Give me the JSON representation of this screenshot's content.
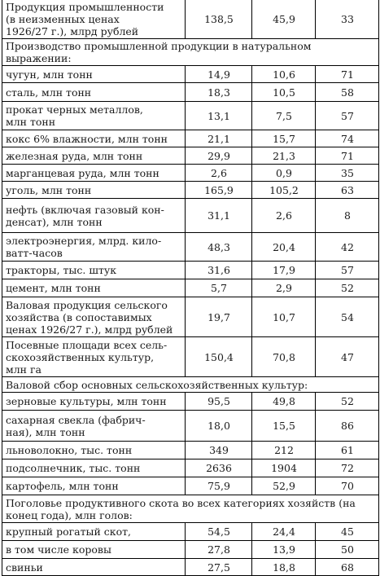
{
  "table": {
    "rows": [
      {
        "kind": "data",
        "label": "Продукция промышленности\n(в неизменных ценах\n1926/27 г.), млрд рублей",
        "v1": "138,5",
        "v2": "45,9",
        "v3": "33"
      },
      {
        "kind": "section",
        "label": "Производство промышленной продукции в натуральном выражении:"
      },
      {
        "kind": "data",
        "label": "чугун, млн тонн",
        "v1": "14,9",
        "v2": "10,6",
        "v3": "71"
      },
      {
        "kind": "data",
        "label": "сталь, млн тонн",
        "v1": "18,3",
        "v2": "10,5",
        "v3": "58"
      },
      {
        "kind": "data",
        "label": "прокат черных металлов,\nмлн тонн",
        "v1": "13,1",
        "v2": "7,5",
        "v3": "57"
      },
      {
        "kind": "data",
        "label": "кокс 6% влажности, млн тонн",
        "v1": "21,1",
        "v2": "15,7",
        "v3": "74"
      },
      {
        "kind": "data",
        "label": "железная руда, млн тонн",
        "v1": "29,9",
        "v2": "21,3",
        "v3": "71"
      },
      {
        "kind": "data",
        "label": "марганцевая руда, млн тонн",
        "v1": "2,6",
        "v2": "0,9",
        "v3": "35"
      },
      {
        "kind": "data",
        "label": "уголь, млн тонн",
        "v1": "165,9",
        "v2": "105,2",
        "v3": "63"
      },
      {
        "kind": "data",
        "label": "нефть (включая газовый кон-\nденсат), млн тонн",
        "v1": "31,1",
        "v2": "2,6",
        "v3": "8"
      },
      {
        "kind": "data",
        "label": "электроэнергия, млрд. кило-\nватт-часов",
        "v1": "48,3",
        "v2": "20,4",
        "v3": "42"
      },
      {
        "kind": "data",
        "label": "тракторы, тыс. штук",
        "v1": "31,6",
        "v2": "17,9",
        "v3": "57"
      },
      {
        "kind": "data",
        "label": "цемент, млн тонн",
        "v1": "5,7",
        "v2": "2,9",
        "v3": "52"
      },
      {
        "kind": "data",
        "label": "Валовая продукция сельского\nхозяйства (в сопоставимых\nценах 1926/27 г.), млрд рублей",
        "v1": "19,7",
        "v2": "10,7",
        "v3": "54"
      },
      {
        "kind": "data",
        "label": "Посевные площади всех сель-\nскохозяйственных культур,\nмлн га",
        "v1": "150,4",
        "v2": "70,8",
        "v3": "47"
      },
      {
        "kind": "section",
        "label": "Валовой сбор основных сельскохозяйственных культур:"
      },
      {
        "kind": "data",
        "label": "зерновые культуры, млн тонн",
        "v1": "95,5",
        "v2": "49,8",
        "v3": "52"
      },
      {
        "kind": "data",
        "label": "сахарная свекла (фабрич-\nная), млн тонн",
        "v1": "18,0",
        "v2": "15,5",
        "v3": "86"
      },
      {
        "kind": "data",
        "label": "льноволокно, тыс. тонн",
        "v1": "349",
        "v2": "212",
        "v3": "61"
      },
      {
        "kind": "data",
        "label": "подсолнечник, тыс. тонн",
        "v1": "2636",
        "v2": "1904",
        "v3": "72"
      },
      {
        "kind": "data",
        "label": "картофель, млн тонн",
        "v1": "75,9",
        "v2": "52,9",
        "v3": "70"
      },
      {
        "kind": "section",
        "label": "Поголовье продуктивного скота во всех категориях хозяйств (на\nконец года), млн голов:"
      },
      {
        "kind": "data",
        "label": "крупный рогатый скот,",
        "v1": "54,5",
        "v2": "24,4",
        "v3": "45"
      },
      {
        "kind": "data",
        "label": "в том числе коровы",
        "v1": "27,8",
        "v2": "13,9",
        "v3": "50"
      },
      {
        "kind": "data",
        "label": "свиньи",
        "v1": "27,5",
        "v2": "18,8",
        "v3": "68"
      }
    ]
  }
}
